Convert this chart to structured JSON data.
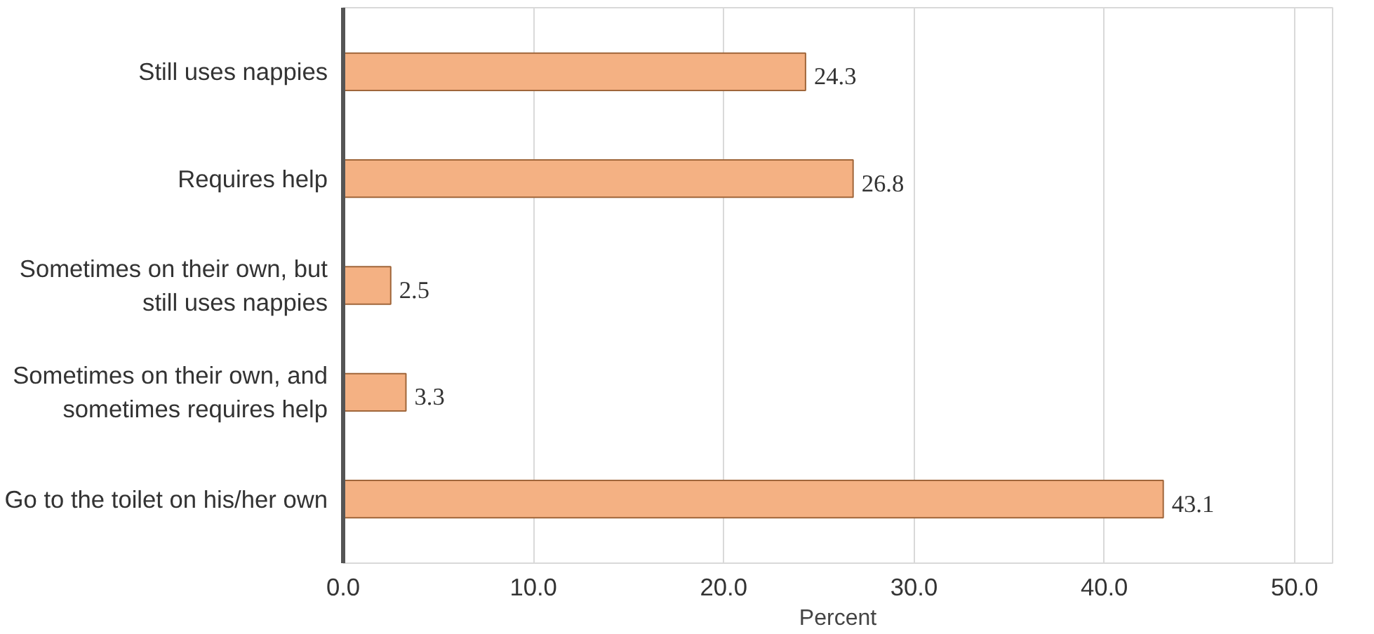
{
  "chart_data": {
    "type": "bar",
    "orientation": "horizontal",
    "xlabel": "Percent",
    "categories": [
      "Still uses nappies",
      "Requires help",
      "Sometimes on their own, but still uses nappies",
      "Sometimes on their own, and sometimes requires help",
      "Go to the toilet on his/her own"
    ],
    "values": [
      24.3,
      26.8,
      2.5,
      3.3,
      43.1
    ],
    "color": "#f4b183",
    "xlim": [
      0,
      50
    ],
    "xticks": [
      {
        "value": 0,
        "label": "0.0"
      },
      {
        "value": 10,
        "label": "10.0"
      },
      {
        "value": 20,
        "label": "20.0"
      },
      {
        "value": 30,
        "label": "30.0"
      },
      {
        "value": 40,
        "label": "40.0"
      },
      {
        "value": 50,
        "label": "50.0"
      }
    ],
    "grid": "x",
    "data_labels": true
  }
}
